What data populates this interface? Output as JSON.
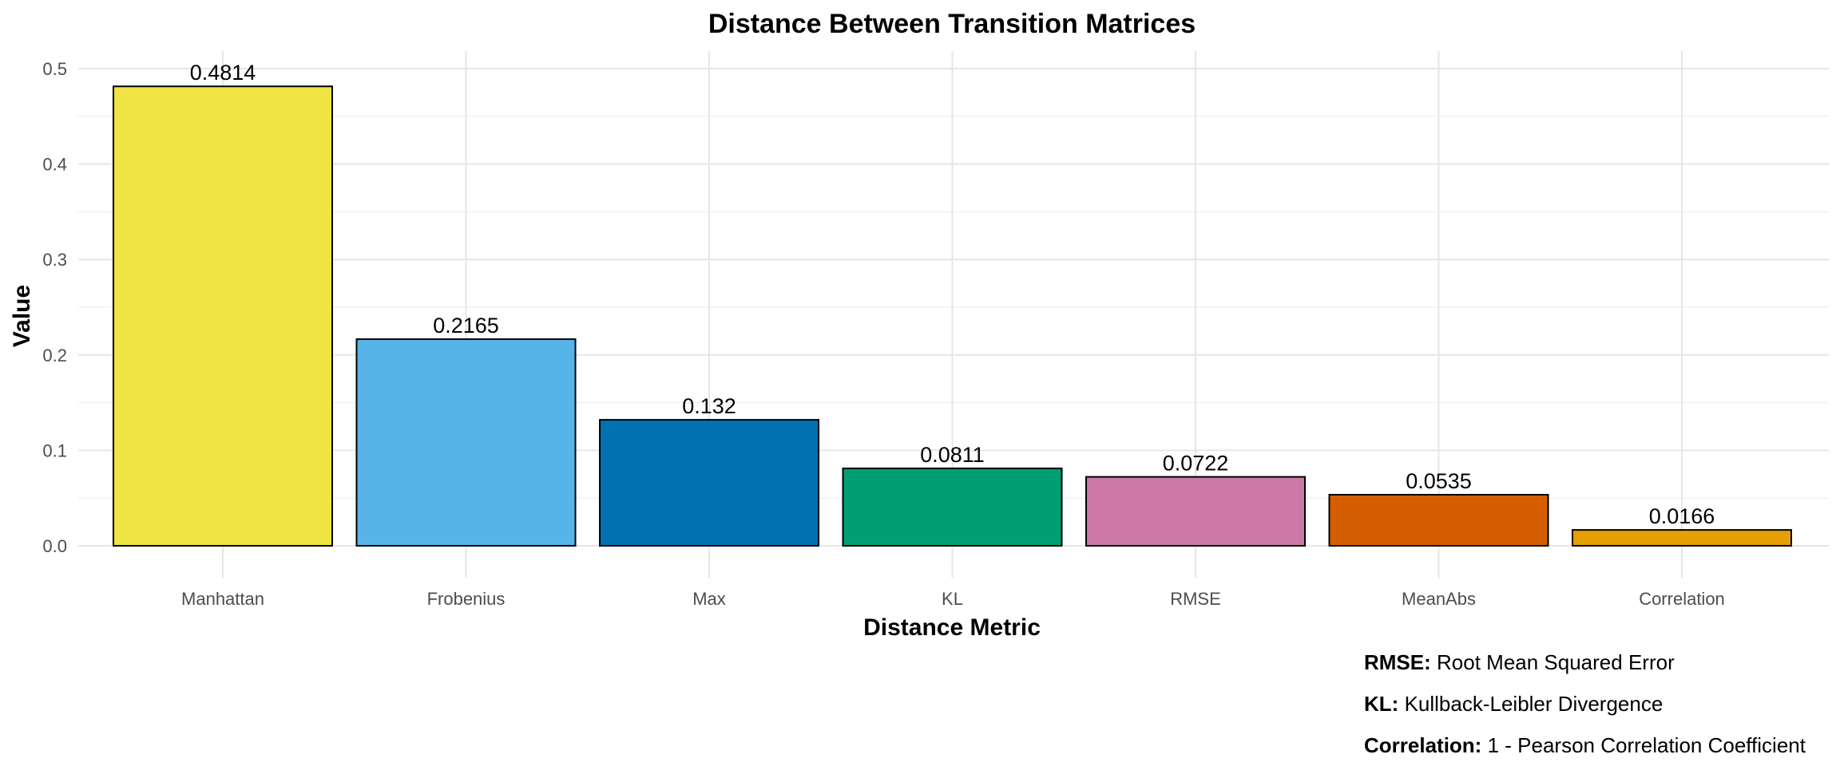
{
  "chart_data": {
    "type": "bar",
    "title": "Distance Between Transition Matrices",
    "xlabel": "Distance Metric",
    "ylabel": "Value",
    "categories": [
      "Manhattan",
      "Frobenius",
      "Max",
      "KL",
      "RMSE",
      "MeanAbs",
      "Correlation"
    ],
    "values": [
      0.4814,
      0.2165,
      0.132,
      0.0811,
      0.0722,
      0.0535,
      0.0166
    ],
    "value_labels": [
      "0.4814",
      "0.2165",
      "0.132",
      "0.0811",
      "0.0722",
      "0.0535",
      "0.0166"
    ],
    "colors": [
      "#F0E442",
      "#56B4E9",
      "#0072B2",
      "#009E73",
      "#CC79A7",
      "#D55E00",
      "#E69F00"
    ],
    "ylim": [
      0,
      0.5
    ],
    "yticks": [
      0.0,
      0.1,
      0.2,
      0.3,
      0.4,
      0.5
    ],
    "ytick_labels": [
      "0.0",
      "0.1",
      "0.2",
      "0.3",
      "0.4",
      "0.5"
    ],
    "grid": true,
    "legend": "none"
  },
  "notes": [
    {
      "term": "RMSE:",
      "definition": "Root Mean Squared Error"
    },
    {
      "term": "KL:",
      "definition": "Kullback-Leibler Divergence"
    },
    {
      "term": "Correlation:",
      "definition": "1 - Pearson Correlation Coefficient"
    }
  ]
}
